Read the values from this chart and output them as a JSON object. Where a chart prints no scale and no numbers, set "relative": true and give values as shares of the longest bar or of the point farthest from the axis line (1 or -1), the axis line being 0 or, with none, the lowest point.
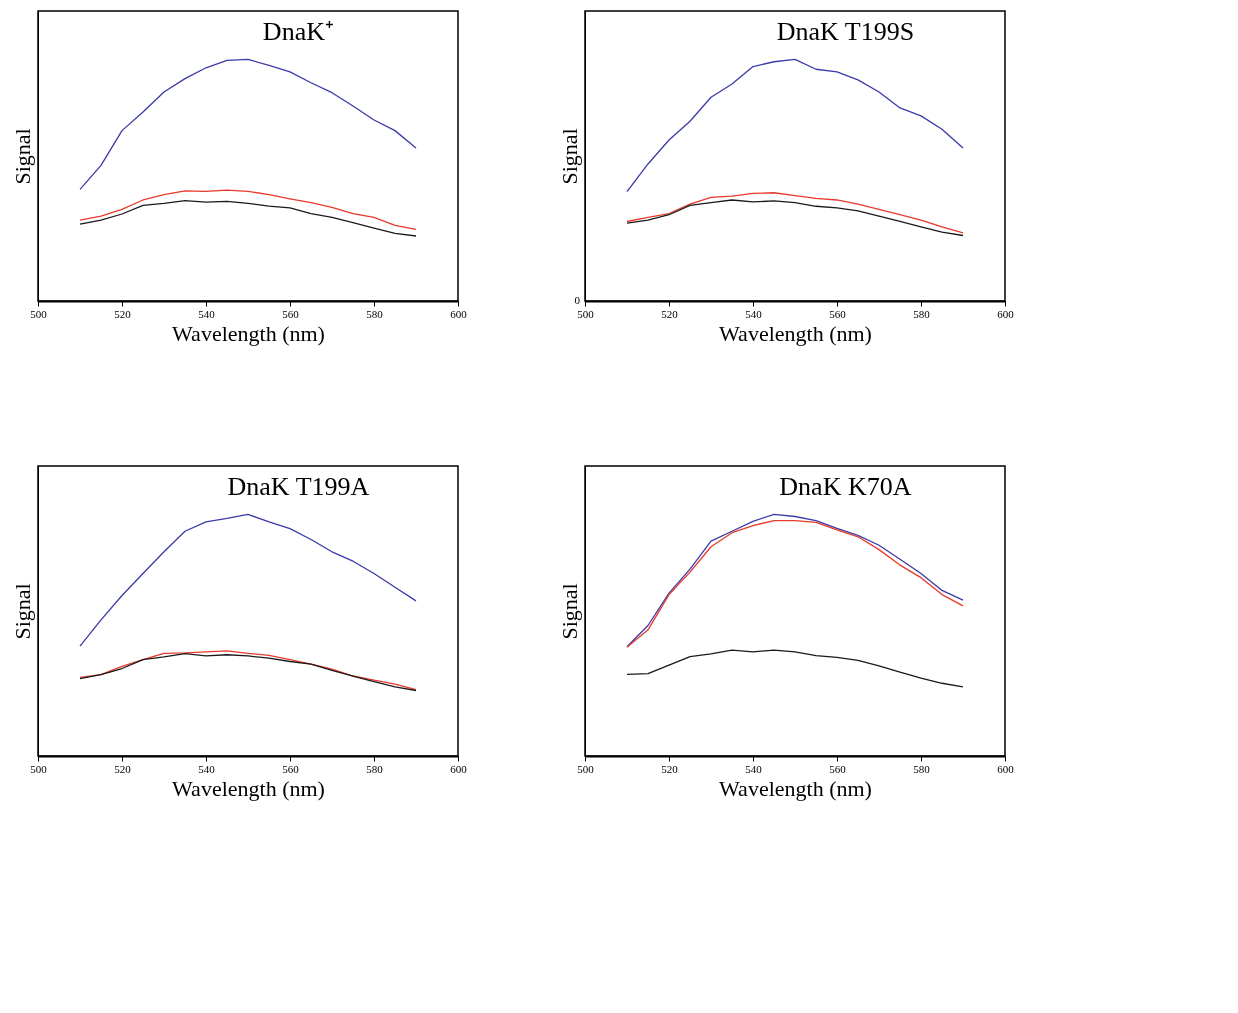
{
  "chart_data": [
    {
      "type": "line",
      "title": "DnaK⁺",
      "xlabel": "Wavelength (nm)",
      "ylabel": "Signal",
      "relative": true,
      "xlim": [
        500,
        600
      ],
      "xticks": [
        500,
        520,
        540,
        560,
        580,
        600
      ],
      "x": [
        510,
        515,
        520,
        525,
        530,
        535,
        540,
        545,
        550,
        555,
        560,
        565,
        570,
        575,
        580,
        585,
        590
      ],
      "series": [
        {
          "color": "#3a3aa8",
          "values": [
            0.462,
            0.561,
            0.705,
            0.782,
            0.865,
            0.92,
            0.965,
            0.996,
            1.0,
            0.975,
            0.948,
            0.903,
            0.862,
            0.807,
            0.749,
            0.705,
            0.633
          ]
        },
        {
          "color": "#e8392a",
          "values": [
            0.335,
            0.351,
            0.379,
            0.418,
            0.44,
            0.456,
            0.454,
            0.459,
            0.454,
            0.44,
            0.423,
            0.407,
            0.387,
            0.362,
            0.346,
            0.313,
            0.296
          ]
        },
        {
          "color": "#1a1a1a",
          "values": [
            0.318,
            0.335,
            0.36,
            0.396,
            0.404,
            0.415,
            0.409,
            0.412,
            0.404,
            0.393,
            0.385,
            0.362,
            0.346,
            0.324,
            0.302,
            0.28,
            0.269
          ]
        }
      ]
    },
    {
      "type": "line",
      "title": "DnaK T199S",
      "xlabel": "Wavelength (nm)",
      "ylabel": "Signal",
      "relative": true,
      "xlim": [
        500,
        600
      ],
      "xticks": [
        500,
        520,
        540,
        560,
        580,
        600
      ],
      "annotations": [
        "0"
      ],
      "x": [
        510,
        515,
        520,
        525,
        530,
        535,
        540,
        545,
        550,
        555,
        560,
        565,
        570,
        575,
        580,
        585,
        590
      ],
      "series": [
        {
          "color": "#3a3aa8",
          "values": [
            0.453,
            0.567,
            0.666,
            0.744,
            0.843,
            0.898,
            0.97,
            0.99,
            1.0,
            0.959,
            0.948,
            0.915,
            0.865,
            0.799,
            0.766,
            0.711,
            0.633
          ]
        },
        {
          "color": "#e8392a",
          "values": [
            0.329,
            0.346,
            0.362,
            0.401,
            0.429,
            0.434,
            0.445,
            0.448,
            0.436,
            0.425,
            0.418,
            0.401,
            0.379,
            0.357,
            0.335,
            0.307,
            0.282
          ]
        },
        {
          "color": "#1a1a1a",
          "values": [
            0.322,
            0.335,
            0.357,
            0.396,
            0.407,
            0.418,
            0.41,
            0.414,
            0.407,
            0.392,
            0.385,
            0.373,
            0.351,
            0.329,
            0.307,
            0.285,
            0.271
          ]
        }
      ]
    },
    {
      "type": "line",
      "title": "DnaK T199A",
      "xlabel": "Wavelength (nm)",
      "ylabel": "Signal",
      "relative": true,
      "xlim": [
        500,
        600
      ],
      "xticks": [
        500,
        520,
        540,
        560,
        580,
        600
      ],
      "x": [
        510,
        515,
        520,
        525,
        530,
        535,
        540,
        545,
        550,
        555,
        560,
        565,
        570,
        575,
        580,
        585,
        590
      ],
      "series": [
        {
          "color": "#3a3aa8",
          "values": [
            0.455,
            0.563,
            0.664,
            0.755,
            0.845,
            0.93,
            0.969,
            0.983,
            1.0,
            0.969,
            0.941,
            0.896,
            0.845,
            0.806,
            0.755,
            0.698,
            0.642
          ]
        },
        {
          "color": "#e8392a",
          "values": [
            0.325,
            0.337,
            0.371,
            0.399,
            0.425,
            0.427,
            0.431,
            0.435,
            0.425,
            0.416,
            0.399,
            0.38,
            0.359,
            0.331,
            0.314,
            0.297,
            0.275
          ]
        },
        {
          "color": "#1a1a1a",
          "values": [
            0.32,
            0.337,
            0.362,
            0.399,
            0.41,
            0.424,
            0.414,
            0.419,
            0.414,
            0.405,
            0.391,
            0.38,
            0.354,
            0.331,
            0.308,
            0.286,
            0.271
          ]
        }
      ]
    },
    {
      "type": "line",
      "title": "DnaK K70A",
      "xlabel": "Wavelength (nm)",
      "ylabel": "Signal",
      "relative": true,
      "xlim": [
        500,
        600
      ],
      "xticks": [
        500,
        520,
        540,
        560,
        580,
        600
      ],
      "x": [
        510,
        515,
        520,
        525,
        530,
        535,
        540,
        545,
        550,
        555,
        560,
        565,
        570,
        575,
        580,
        585,
        590
      ],
      "series": [
        {
          "color": "#3a3aa8",
          "values": [
            0.452,
            0.54,
            0.674,
            0.773,
            0.889,
            0.93,
            0.971,
            1.0,
            0.991,
            0.974,
            0.942,
            0.913,
            0.872,
            0.814,
            0.755,
            0.685,
            0.645
          ]
        },
        {
          "color": "#e8392a",
          "values": [
            0.45,
            0.522,
            0.668,
            0.761,
            0.866,
            0.924,
            0.953,
            0.974,
            0.974,
            0.967,
            0.936,
            0.907,
            0.854,
            0.79,
            0.738,
            0.668,
            0.621
          ]
        },
        {
          "color": "#1a1a1a",
          "values": [
            0.338,
            0.341,
            0.376,
            0.411,
            0.423,
            0.438,
            0.431,
            0.438,
            0.431,
            0.415,
            0.408,
            0.396,
            0.373,
            0.347,
            0.322,
            0.301,
            0.286
          ]
        }
      ]
    }
  ]
}
